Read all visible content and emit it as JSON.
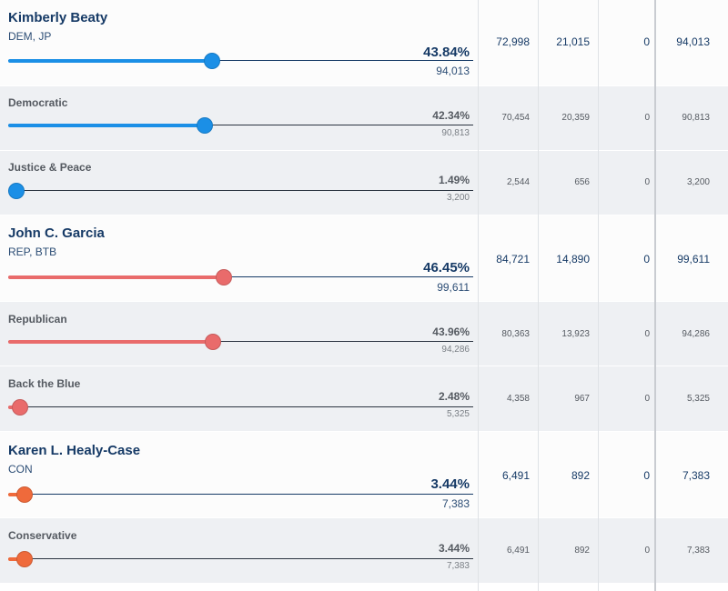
{
  "colors": {
    "democratic_blue": "#1b8fe6",
    "republican_red": "#e96b6b",
    "conservative_orange": "#ef6a3b",
    "text_navy": "#163a66",
    "party_row_bg": "#eef0f3"
  },
  "rows": [
    {
      "type": "candidate",
      "name": "Kimberly Beaty",
      "party": "DEM, JP",
      "percent": "43.84%",
      "share": 0.4384,
      "total": "94,013",
      "col1": "72,998",
      "col2": "21,015",
      "col3": "0",
      "col4": "94,013",
      "color": "#1b8fe6"
    },
    {
      "type": "party",
      "name": "Democratic",
      "percent": "42.34%",
      "share": 0.4234,
      "total": "90,813",
      "col1": "70,454",
      "col2": "20,359",
      "col3": "0",
      "col4": "90,813",
      "color": "#1b8fe6"
    },
    {
      "type": "party",
      "name": "Justice & Peace",
      "percent": "1.49%",
      "share": 0.0149,
      "total": "3,200",
      "col1": "2,544",
      "col2": "656",
      "col3": "0",
      "col4": "3,200",
      "color": "#1b8fe6"
    },
    {
      "type": "candidate",
      "name": "John C. Garcia",
      "party": "REP, BTB",
      "percent": "46.45%",
      "share": 0.4645,
      "total": "99,611",
      "col1": "84,721",
      "col2": "14,890",
      "col3": "0",
      "col4": "99,611",
      "color": "#e96b6b"
    },
    {
      "type": "party",
      "name": "Republican",
      "percent": "43.96%",
      "share": 0.4396,
      "total": "94,286",
      "col1": "80,363",
      "col2": "13,923",
      "col3": "0",
      "col4": "94,286",
      "color": "#e96b6b"
    },
    {
      "type": "party",
      "name": "Back the Blue",
      "percent": "2.48%",
      "share": 0.0248,
      "total": "5,325",
      "col1": "4,358",
      "col2": "967",
      "col3": "0",
      "col4": "5,325",
      "color": "#e96b6b"
    },
    {
      "type": "candidate",
      "name": "Karen L. Healy-Case",
      "party": "CON",
      "percent": "3.44%",
      "share": 0.0344,
      "total": "7,383",
      "col1": "6,491",
      "col2": "892",
      "col3": "0",
      "col4": "7,383",
      "color": "#ef6a3b"
    },
    {
      "type": "party",
      "name": "Conservative",
      "percent": "3.44%",
      "share": 0.0344,
      "total": "7,383",
      "col1": "6,491",
      "col2": "892",
      "col3": "0",
      "col4": "7,383",
      "color": "#ef6a3b"
    }
  ]
}
